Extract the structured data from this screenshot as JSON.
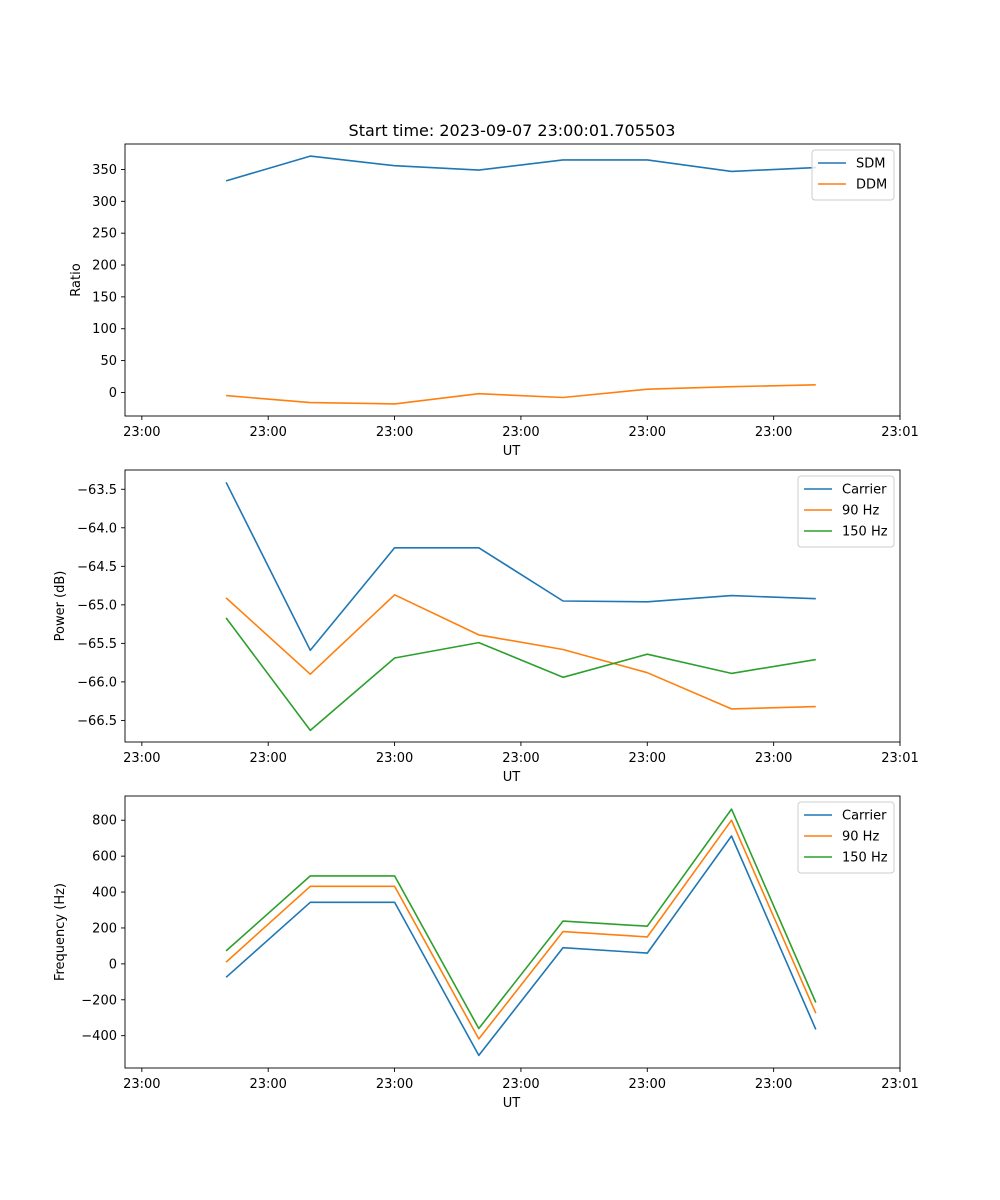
{
  "figure_title": "Start time: 2023-09-07 23:00:01.705503",
  "colors": {
    "blue": "#1f77b4",
    "orange": "#ff7f0e",
    "green": "#2ca02c"
  },
  "chart_data": [
    {
      "type": "line",
      "name": "ratio",
      "title": "Start time: 2023-09-07 23:00:01.705503",
      "xlabel": "UT",
      "ylabel": "Ratio",
      "x": [
        1,
        2,
        3,
        4,
        5,
        6,
        7,
        8
      ],
      "xlim": [
        -0.2,
        9.0
      ],
      "xticks": [
        0,
        1.5,
        3,
        4.5,
        6,
        7.5,
        9
      ],
      "xticklabels": [
        "23:00",
        "23:00",
        "23:00",
        "23:00",
        "23:00",
        "23:00",
        "23:01"
      ],
      "ylim": [
        -37,
        390
      ],
      "yticks": [
        0,
        50,
        100,
        150,
        200,
        250,
        300,
        350
      ],
      "yticklabels": [
        "0",
        "50",
        "100",
        "150",
        "200",
        "250",
        "300",
        "350"
      ],
      "legend": "top-right",
      "series": [
        {
          "name": "SDM",
          "color": "#1f77b4",
          "values": [
            332,
            371,
            356,
            349,
            365,
            365,
            347,
            353
          ]
        },
        {
          "name": "DDM",
          "color": "#ff7f0e",
          "values": [
            -5,
            -16,
            -18,
            -2,
            -8,
            5,
            9,
            12
          ]
        }
      ]
    },
    {
      "type": "line",
      "name": "power",
      "xlabel": "UT",
      "ylabel": "Power (dB)",
      "x": [
        1,
        2,
        3,
        4,
        5,
        6,
        7,
        8
      ],
      "xlim": [
        -0.2,
        9.0
      ],
      "xticks": [
        0,
        1.5,
        3,
        4.5,
        6,
        7.5,
        9
      ],
      "xticklabels": [
        "23:00",
        "23:00",
        "23:00",
        "23:00",
        "23:00",
        "23:00",
        "23:01"
      ],
      "ylim": [
        -66.78,
        -63.25
      ],
      "yticks": [
        -66.5,
        -66.0,
        -65.5,
        -65.0,
        -64.5,
        -64.0,
        -63.5
      ],
      "yticklabels": [
        "−66.5",
        "−66.0",
        "−65.5",
        "−65.0",
        "−64.5",
        "−64.0",
        "−63.5"
      ],
      "legend": "top-right",
      "series": [
        {
          "name": "Carrier",
          "color": "#1f77b4",
          "values": [
            -63.41,
            -65.59,
            -64.26,
            -64.26,
            -64.95,
            -64.96,
            -64.88,
            -64.92
          ]
        },
        {
          "name": "90 Hz",
          "color": "#ff7f0e",
          "values": [
            -64.91,
            -65.9,
            -64.87,
            -65.39,
            -65.58,
            -65.88,
            -66.35,
            -66.32
          ]
        },
        {
          "name": "150 Hz",
          "color": "#2ca02c",
          "values": [
            -65.17,
            -66.63,
            -65.69,
            -65.49,
            -65.94,
            -65.64,
            -65.89,
            -65.71
          ]
        }
      ]
    },
    {
      "type": "line",
      "name": "frequency",
      "xlabel": "UT",
      "ylabel": "Frequency (Hz)",
      "x": [
        1,
        2,
        3,
        4,
        5,
        6,
        7,
        8
      ],
      "xlim": [
        -0.2,
        9.0
      ],
      "xticks": [
        0,
        1.5,
        3,
        4.5,
        6,
        7.5,
        9
      ],
      "xticklabels": [
        "23:00",
        "23:00",
        "23:00",
        "23:00",
        "23:00",
        "23:00",
        "23:01"
      ],
      "ylim": [
        -580,
        935
      ],
      "yticks": [
        -400,
        -200,
        0,
        200,
        400,
        600,
        800
      ],
      "yticklabels": [
        "−400",
        "−200",
        "0",
        "200",
        "400",
        "600",
        "800"
      ],
      "legend": "top-right",
      "series": [
        {
          "name": "Carrier",
          "color": "#1f77b4",
          "values": [
            -75,
            343,
            343,
            -510,
            90,
            60,
            712,
            -365
          ]
        },
        {
          "name": "90 Hz",
          "color": "#ff7f0e",
          "values": [
            10,
            432,
            432,
            -418,
            180,
            150,
            800,
            -275
          ]
        },
        {
          "name": "150 Hz",
          "color": "#2ca02c",
          "values": [
            72,
            490,
            490,
            -360,
            238,
            210,
            862,
            -215
          ]
        }
      ]
    }
  ]
}
